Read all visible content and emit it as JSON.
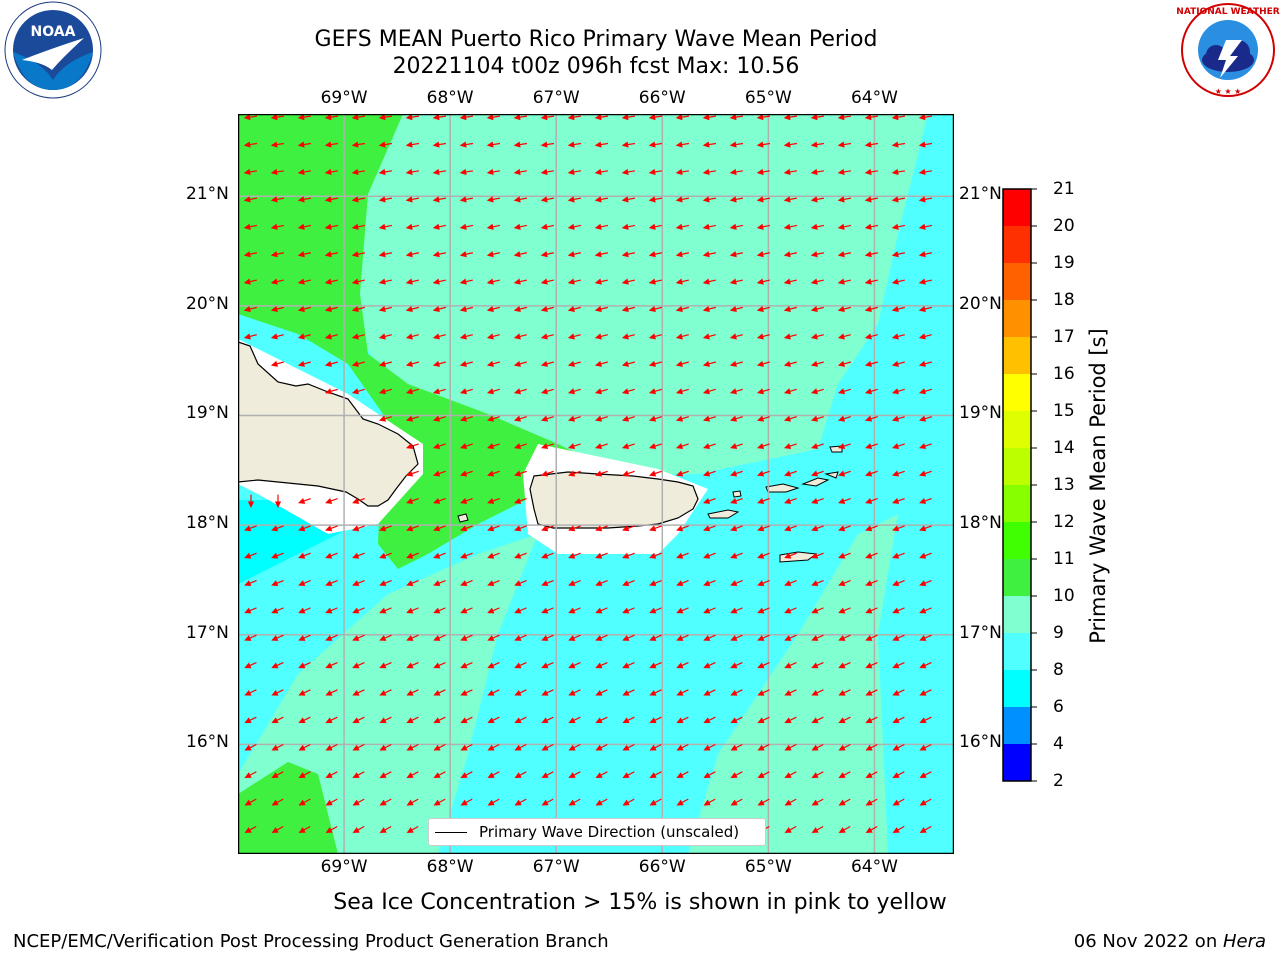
{
  "header": {
    "title_line1": "GEFS MEAN Puerto Rico Primary Wave Mean Period",
    "title_line2": "20221104 t00z 096h fcst   Max: 10.56"
  },
  "logos": {
    "left": {
      "name": "noaa-logo",
      "text": "NOAA",
      "ring_text": "NATIONAL OCEANIC AND ATMOSPHERIC ADMINISTRATION · U.S. DEPARTMENT OF COMMERCE"
    },
    "right": {
      "name": "nws-logo",
      "ring_text": "NATIONAL WEATHER SERVICE"
    }
  },
  "map": {
    "lon_labels": [
      "69°W",
      "68°W",
      "67°W",
      "66°W",
      "65°W",
      "64°W"
    ],
    "lon_values": [
      -69,
      -68,
      -67,
      -66,
      -65,
      -64
    ],
    "lat_labels": [
      "21°N",
      "20°N",
      "19°N",
      "18°N",
      "17°N",
      "16°N"
    ],
    "lat_values": [
      21,
      20,
      19,
      18,
      17,
      16
    ],
    "extent": {
      "lon": [
        -70.0,
        -63.25
      ],
      "lat": [
        15.0,
        21.75
      ]
    },
    "legend_label": "Primary Wave Direction (unscaled)",
    "arrow_color": "#ff0000",
    "land_color": "#efecdc"
  },
  "colorbar": {
    "title": "Primary Wave Mean Period [s]",
    "ticks": [
      "21",
      "20",
      "19",
      "18",
      "17",
      "16",
      "15",
      "14",
      "13",
      "12",
      "11",
      "10",
      "9",
      "8",
      "6",
      "4",
      "2"
    ],
    "colors": [
      "#ff0000",
      "#ff3000",
      "#ff6000",
      "#ff9000",
      "#ffc000",
      "#ffff00",
      "#ddff00",
      "#bbff00",
      "#88ff00",
      "#40ff00",
      "#40f040",
      "#80ffd0",
      "#50ffff",
      "#00ffff",
      "#0090ff",
      "#0000ff"
    ]
  },
  "subtitle": "Sea Ice Concentration > 15% is shown in pink to yellow",
  "footer": {
    "left": "NCEP/EMC/Verification Post Processing Product Generation Branch",
    "right_date": "06 Nov 2022 on ",
    "right_host": "Hera"
  }
}
